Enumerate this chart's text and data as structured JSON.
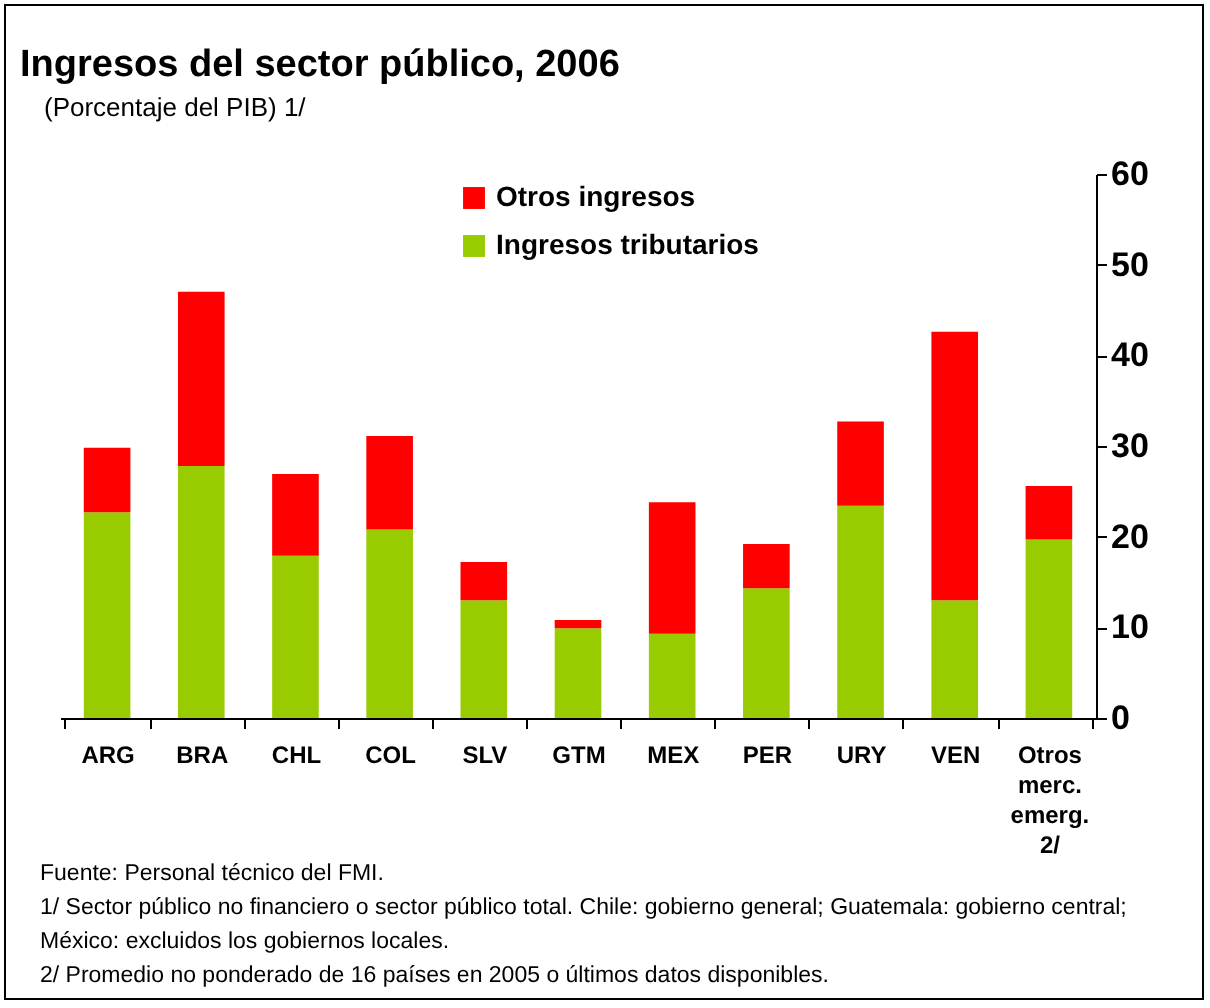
{
  "chart_data": {
    "type": "bar",
    "title": "Ingresos del sector público, 2006",
    "subtitle": "(Porcentaje del PIB) 1/",
    "categories": [
      "ARG",
      "BRA",
      "CHL",
      "COL",
      "SLV",
      "GTM",
      "MEX",
      "PER",
      "URY",
      "VEN",
      "Otros\nmerc.\nemerg.\n2/"
    ],
    "series": [
      {
        "name": "Ingresos tributarios",
        "color": "#99cc00",
        "values": [
          22.7,
          27.8,
          17.9,
          20.8,
          13.0,
          9.9,
          9.3,
          14.3,
          23.4,
          13.0,
          19.7
        ]
      },
      {
        "name": "Otros ingresos",
        "color": "#ff0000",
        "values": [
          7.1,
          19.2,
          9.0,
          10.3,
          4.2,
          0.9,
          14.5,
          4.9,
          9.3,
          29.6,
          5.9
        ]
      }
    ],
    "stacked": true,
    "ylim": [
      0,
      60
    ],
    "yticks": [
      0,
      10,
      20,
      30,
      40,
      50,
      60
    ],
    "legend": "top",
    "grid": false,
    "annotations": [
      "Fuente: Personal técnico del FMI.",
      "1/ Sector público no financiero o sector público total. Chile: gobierno general; Guatemala: gobierno central; México: excluidos los gobiernos locales.",
      "2/ Promedio no ponderado de 16 países en 2005 o últimos datos disponibles."
    ]
  }
}
